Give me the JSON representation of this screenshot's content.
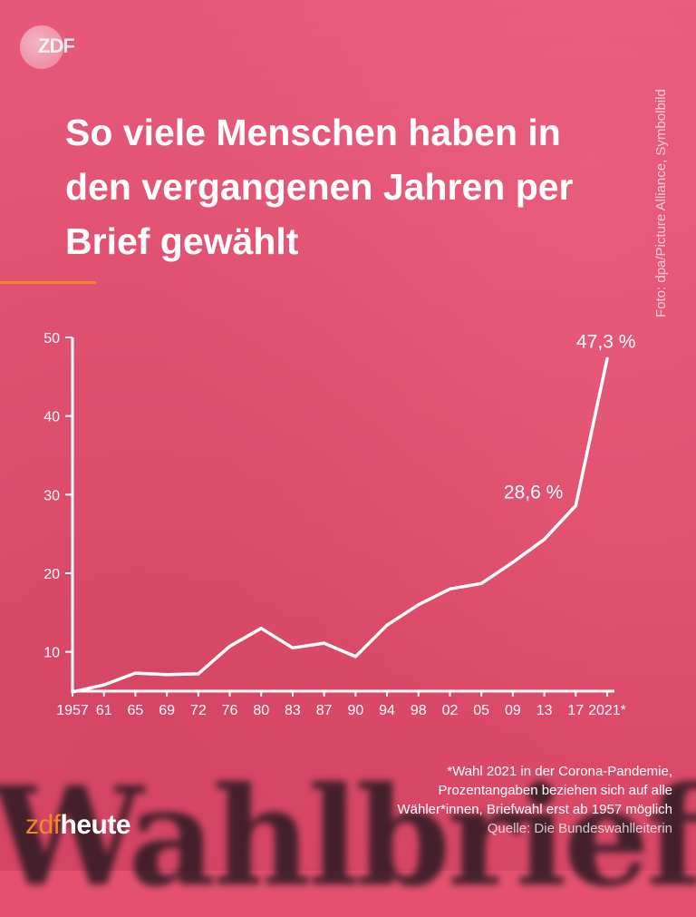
{
  "logo": {
    "text": "ZDF"
  },
  "title": "So viele Menschen haben in den vergangenen Jahren per Brief gewählt",
  "photo_credit": "Foto: dpa/Picture Alliance, Symbolbild",
  "background_word": "Wahlbrief",
  "chart_data": {
    "type": "line",
    "x": [
      "1957",
      "61",
      "65",
      "69",
      "72",
      "76",
      "80",
      "83",
      "87",
      "90",
      "94",
      "98",
      "02",
      "05",
      "09",
      "13",
      "17",
      "2021*"
    ],
    "series": [
      {
        "values": [
          4.9,
          5.8,
          7.3,
          7.1,
          7.2,
          10.7,
          13.0,
          10.5,
          11.1,
          9.4,
          13.4,
          16.0,
          18.0,
          18.7,
          21.4,
          24.3,
          28.6,
          47.3
        ]
      }
    ],
    "yticks": [
      10,
      20,
      30,
      40,
      50
    ],
    "ylim": [
      5,
      50
    ],
    "annotations": [
      {
        "x": "17",
        "text": "28,6 %"
      },
      {
        "x": "2021*",
        "text": "47,3 %"
      }
    ],
    "line_color": "#ffffff",
    "grid": false
  },
  "footnote": {
    "lines": [
      "*Wahl 2021 in der Corona-Pandemie,",
      "Prozentangaben beziehen sich auf alle",
      "Wähler*innen, Briefwahl erst ab 1957 möglich"
    ],
    "source": "Quelle: Die Bundeswahlleiterin"
  },
  "brand": {
    "part1": "zdf",
    "part2": "heute"
  },
  "colors": {
    "background": "#e4516f",
    "accent": "#f2862a",
    "text": "#ffffff"
  }
}
